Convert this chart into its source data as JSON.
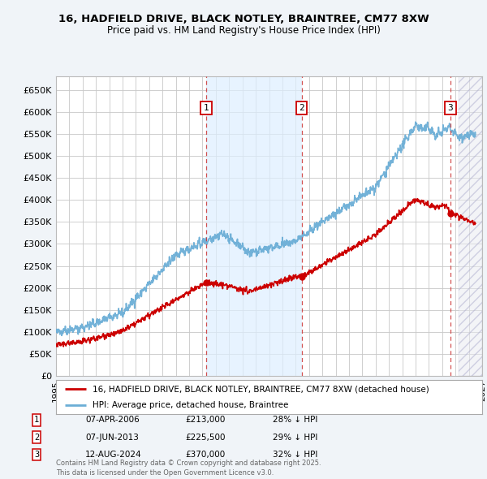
{
  "title_line1": "16, HADFIELD DRIVE, BLACK NOTLEY, BRAINTREE, CM77 8XW",
  "title_line2": "Price paid vs. HM Land Registry's House Price Index (HPI)",
  "ylim": [
    0,
    680000
  ],
  "yticks": [
    0,
    50000,
    100000,
    150000,
    200000,
    250000,
    300000,
    350000,
    400000,
    450000,
    500000,
    550000,
    600000,
    650000
  ],
  "ytick_labels": [
    "£0",
    "£50K",
    "£100K",
    "£150K",
    "£200K",
    "£250K",
    "£300K",
    "£350K",
    "£400K",
    "£450K",
    "£500K",
    "£550K",
    "£600K",
    "£650K"
  ],
  "xlim_start": 1995.0,
  "xlim_end": 2027.0,
  "hpi_color": "#6baed6",
  "price_color": "#cc0000",
  "shade_color": "#ddeeff",
  "sale_dates": [
    2006.27,
    2013.44,
    2024.62
  ],
  "sale_prices": [
    213000,
    225500,
    370000
  ],
  "sale_labels": [
    "1",
    "2",
    "3"
  ],
  "sale_info": [
    {
      "label": "1",
      "date": "07-APR-2006",
      "price": "£213,000",
      "pct": "28% ↓ HPI"
    },
    {
      "label": "2",
      "date": "07-JUN-2013",
      "price": "£225,500",
      "pct": "29% ↓ HPI"
    },
    {
      "label": "3",
      "date": "12-AUG-2024",
      "price": "£370,000",
      "pct": "32% ↓ HPI"
    }
  ],
  "legend_red_label": "16, HADFIELD DRIVE, BLACK NOTLEY, BRAINTREE, CM77 8XW (detached house)",
  "legend_blue_label": "HPI: Average price, detached house, Braintree",
  "footnote": "Contains HM Land Registry data © Crown copyright and database right 2025.\nThis data is licensed under the Open Government Licence v3.0.",
  "bg_color": "#f0f4f8",
  "plot_bg": "#ffffff",
  "grid_color": "#c8c8c8",
  "hatch_start": 2025.25
}
